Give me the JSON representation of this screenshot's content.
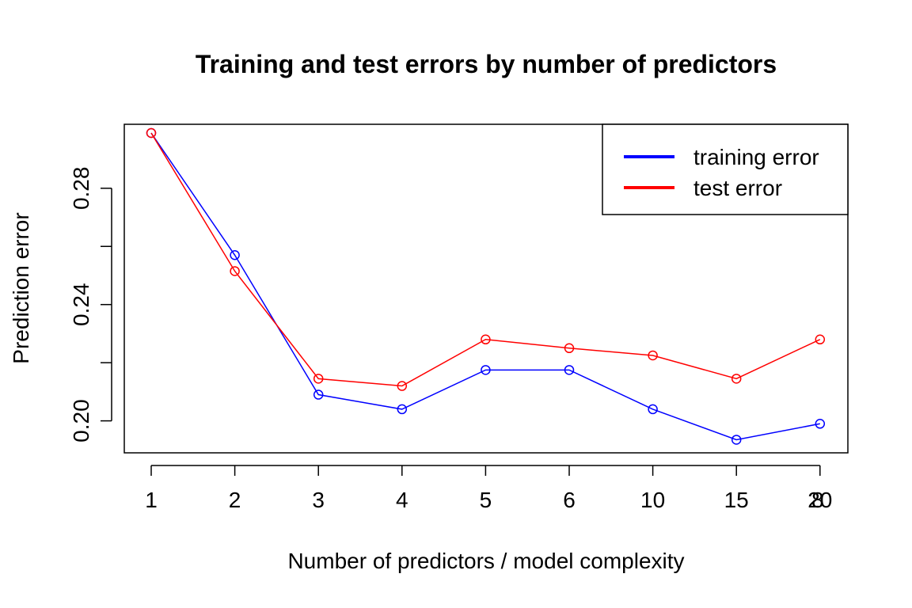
{
  "chart_data": {
    "type": "line",
    "title": "Training and test errors by number of predictors",
    "xlabel": "Number of predictors / model complexity",
    "ylabel": "Prediction error",
    "categories": [
      "1",
      "2",
      "3",
      "4",
      "5",
      "6",
      "10",
      "15",
      "20"
    ],
    "extra_tick_labels": [
      {
        "label": "8",
        "position": 8
      }
    ],
    "ylim": [
      0.189,
      0.302
    ],
    "yticks": [
      0.2,
      0.22,
      0.24,
      0.26,
      0.28
    ],
    "ytick_labels": [
      "0.20",
      "",
      "0.24",
      "",
      "0.28"
    ],
    "grid": false,
    "legend_position": "top-right",
    "series": [
      {
        "name": "training error",
        "color": "#0000ff",
        "values": [
          0.299,
          0.257,
          0.209,
          0.204,
          0.2175,
          0.2175,
          0.204,
          0.1935,
          0.199
        ]
      },
      {
        "name": "test error",
        "color": "#ff0000",
        "values": [
          0.299,
          0.2515,
          0.2145,
          0.212,
          0.228,
          0.225,
          0.2225,
          0.2145,
          0.228
        ]
      }
    ]
  }
}
